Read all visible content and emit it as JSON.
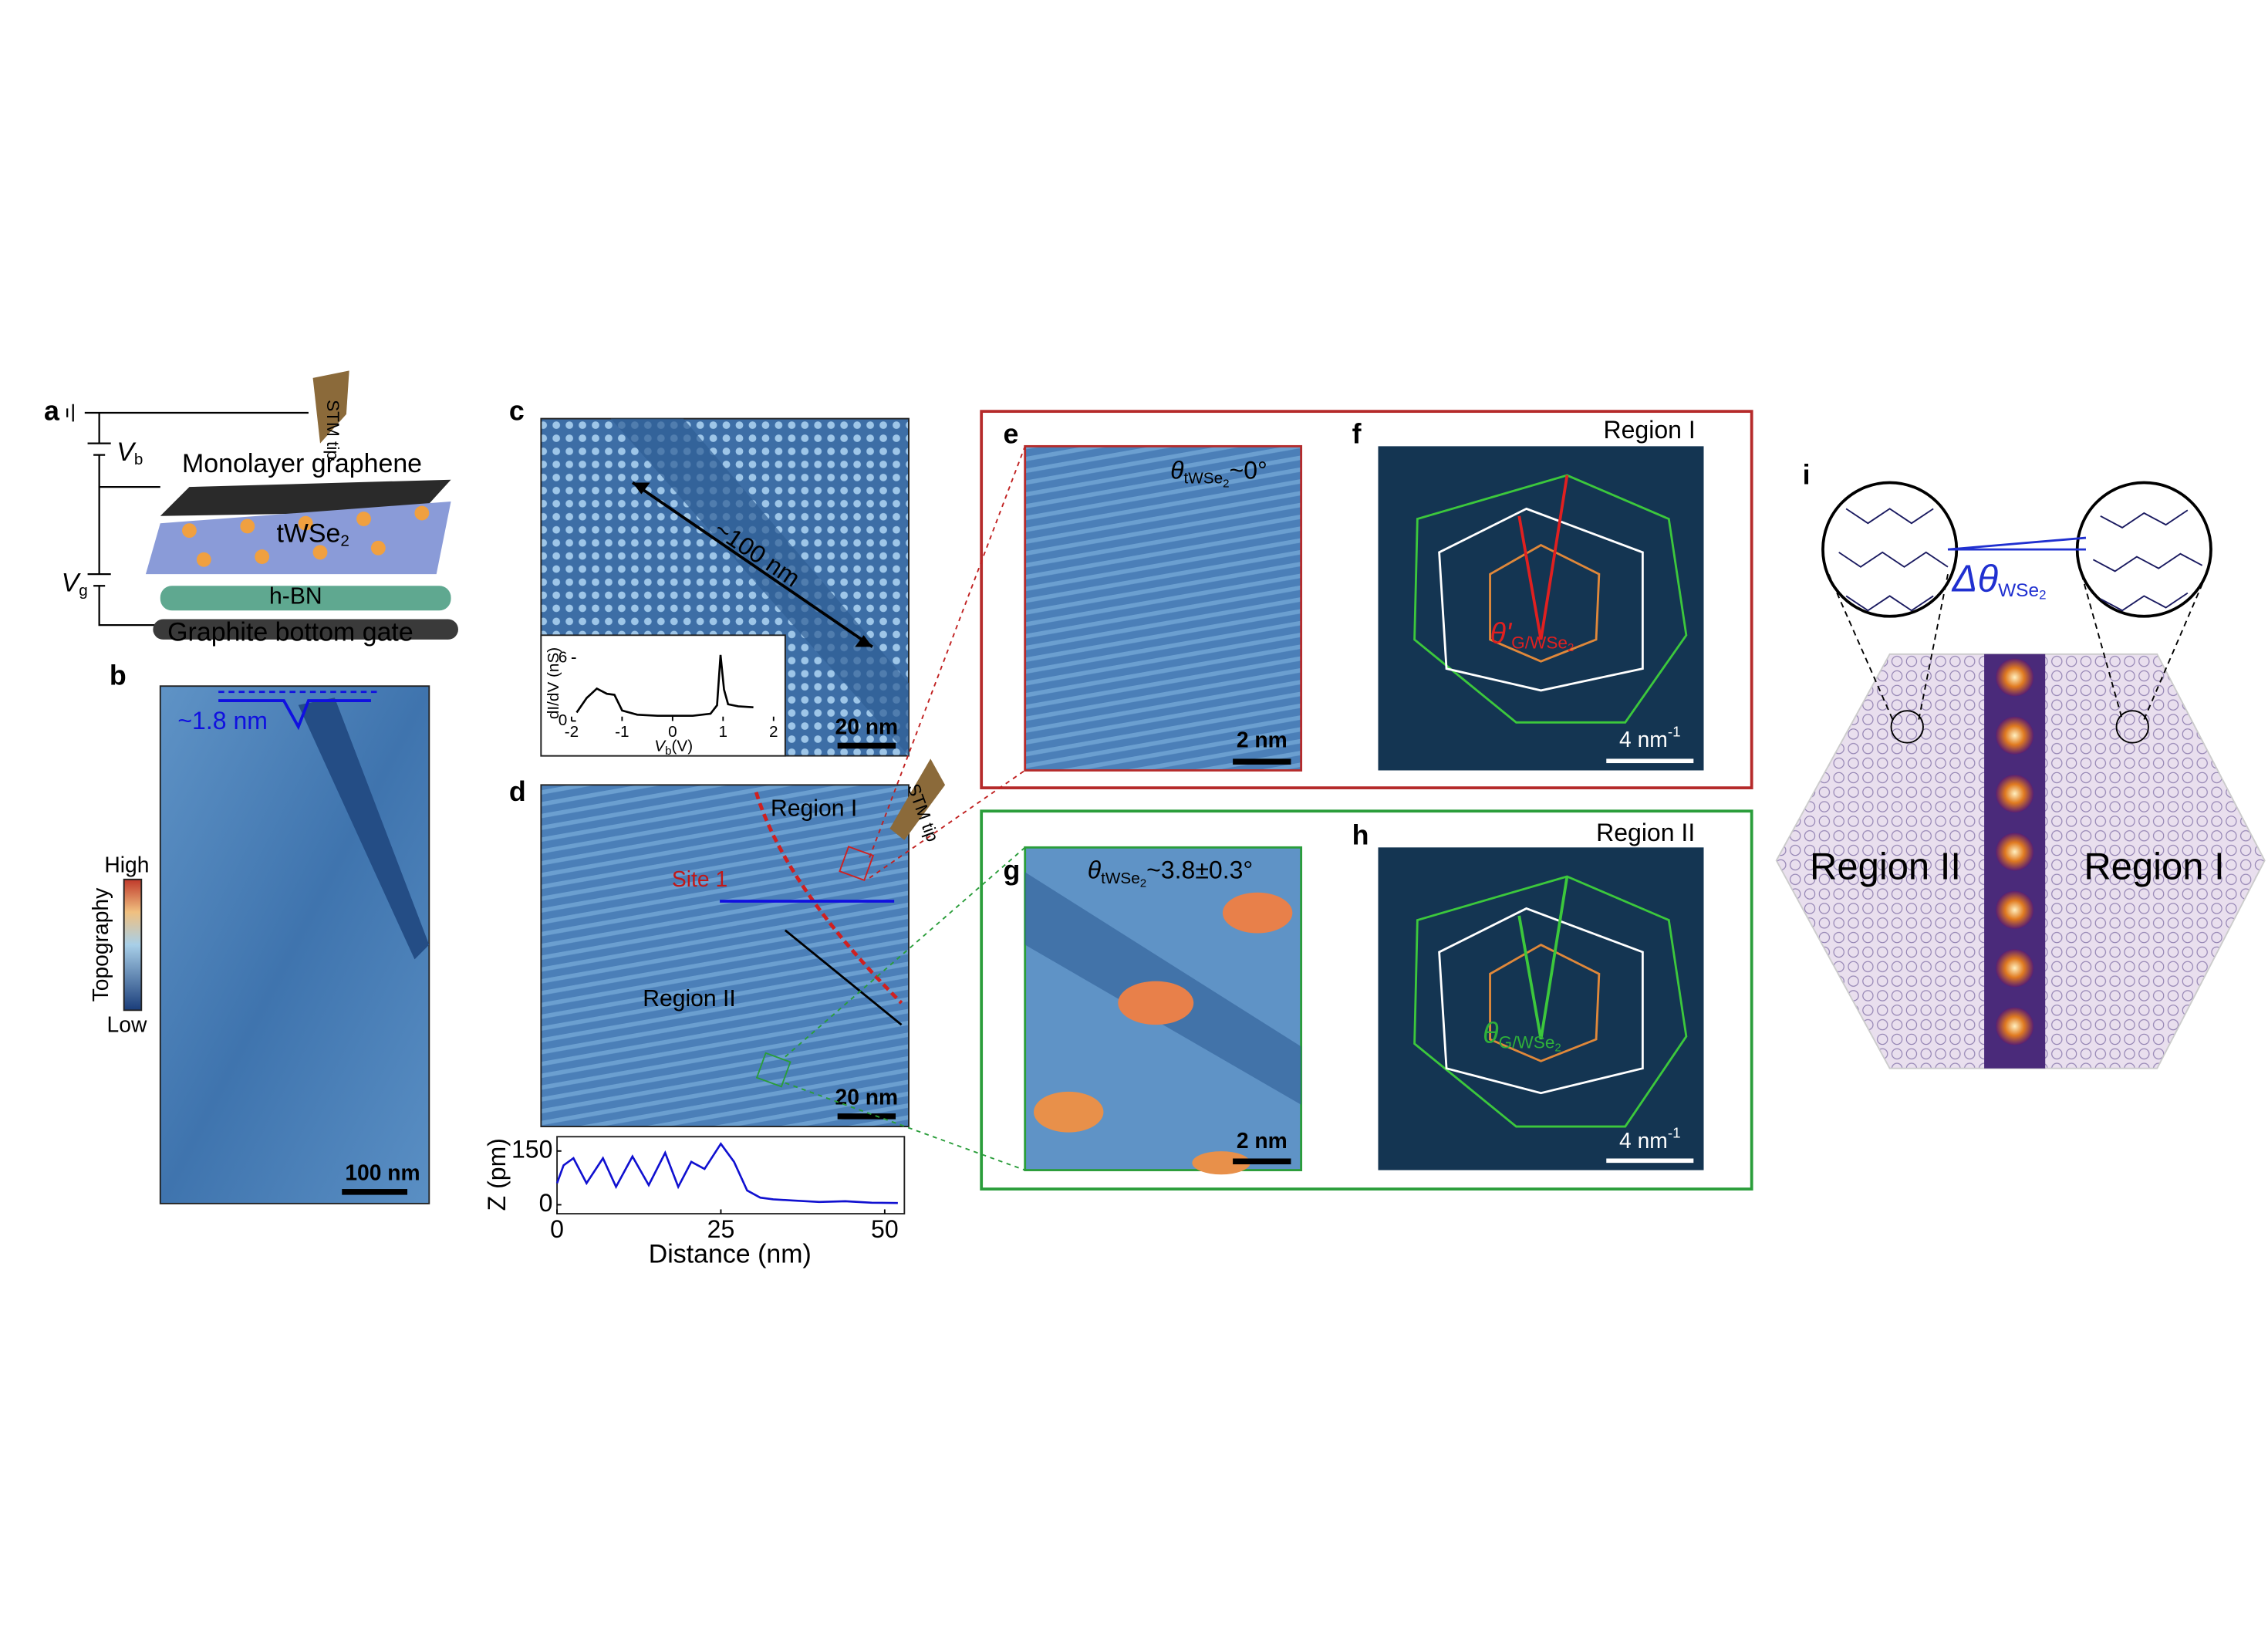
{
  "panels": {
    "a": {
      "label": "a",
      "stm_tip": "STM tip",
      "vb": {
        "symbol": "V",
        "sub": "b"
      },
      "graphene": "Monolayer graphene",
      "twse2": {
        "text": "tWSe",
        "sub": "2"
      },
      "vg": {
        "symbol": "V",
        "sub": "g"
      },
      "hbn": "h-BN",
      "gate": "Graphite bottom gate"
    },
    "b": {
      "label": "b",
      "depth": "~1.8 nm",
      "colorbar": {
        "title": "Topography",
        "high": "High",
        "low": "Low"
      },
      "scale_bar": "100 nm"
    },
    "c": {
      "label": "c",
      "length": "~100 nm",
      "scale_bar": "20 nm",
      "inset": {
        "type": "line",
        "y_label": "dI/dV (nS)",
        "x_label": {
          "symbol": "V",
          "sub": "b",
          "unit": "(V)"
        },
        "x": [
          -1.9,
          -1.7,
          -1.5,
          -1.3,
          -1.15,
          -1,
          -0.7,
          -0.3,
          0,
          0.4,
          0.75,
          0.88,
          0.95,
          1.02,
          1.1,
          1.3,
          1.6
        ],
        "values": [
          0.8,
          2.2,
          3.1,
          2.6,
          2.5,
          1.0,
          0.6,
          0.5,
          0.5,
          0.5,
          0.7,
          1.5,
          6.3,
          3.0,
          1.6,
          1.4,
          1.3
        ],
        "xlim": [
          -2,
          2
        ],
        "ylim": [
          0,
          7.5
        ],
        "xticks": [
          -2,
          -1,
          0,
          1,
          2
        ],
        "yticks": [
          0,
          6
        ]
      }
    },
    "d": {
      "label": "d",
      "region1": "Region I",
      "site": "Site 1",
      "region2": "Region II",
      "scale_bar": "20 nm",
      "stm_tip": "STM tip",
      "profile": {
        "type": "line",
        "y_label": "Z (pm)",
        "x_label": "Distance (nm)",
        "x": [
          0,
          1,
          2.5,
          4.5,
          7,
          9,
          11.5,
          14,
          16.5,
          18.5,
          20.5,
          22.5,
          25,
          27,
          29,
          31,
          33,
          36,
          40,
          44,
          48,
          52
        ],
        "values": [
          60,
          110,
          130,
          60,
          130,
          50,
          135,
          55,
          145,
          50,
          120,
          100,
          170,
          120,
          40,
          20,
          15,
          12,
          8,
          10,
          6,
          5
        ],
        "xlim": [
          0,
          53
        ],
        "ylim": [
          -25,
          190
        ],
        "xticks": [
          0,
          25,
          50
        ],
        "yticks": [
          0,
          150
        ]
      }
    },
    "e": {
      "label": "e",
      "angle": {
        "symbol": "θ",
        "sub": "tWSe",
        "subsub": "2",
        "rest": "~0°"
      },
      "scale_bar": "2 nm"
    },
    "f": {
      "label": "f",
      "region": "Region I",
      "angle": {
        "symbol": "θ'",
        "sub": "G/WSe",
        "subsub": "2"
      },
      "scale_bar": {
        "text": "4 nm",
        "sup": "-1"
      }
    },
    "g": {
      "label": "g",
      "angle": {
        "symbol": "θ",
        "sub": "tWSe",
        "subsub": "2",
        "rest": "~3.8±0.3°"
      },
      "scale_bar": "2 nm"
    },
    "h": {
      "label": "h",
      "region": "Region II",
      "angle": {
        "symbol": "θ",
        "sub": "G/WSe",
        "subsub": "2"
      },
      "scale_bar": {
        "text": "4 nm",
        "sup": "-1"
      }
    },
    "i": {
      "label": "i",
      "angle": {
        "symbol": "Δθ",
        "sub": "WSe",
        "subsub": "2"
      },
      "region2": "Region II",
      "region1": "Region I"
    }
  }
}
